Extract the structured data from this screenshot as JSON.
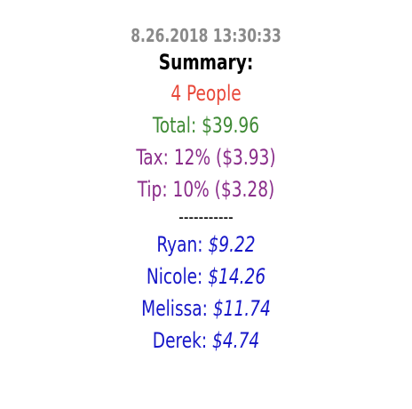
{
  "timestamp": "8.26.2018 13:30:33",
  "summary_title": "Summary:",
  "people_count": "4 People",
  "total": "Total: $39.96",
  "tax": "Tax: 12% ($3.93)",
  "tip": "Tip: 10% ($3.28)",
  "divider": "-----------",
  "people": [
    {
      "label": "Ryan:",
      "amount": "$9.22"
    },
    {
      "label": "Nicole:",
      "amount": "$14.26"
    },
    {
      "label": "Melissa:",
      "amount": "$11.74"
    },
    {
      "label": "Derek:",
      "amount": "$4.74"
    }
  ],
  "colors": {
    "timestamp": "#8a8a8a",
    "title": "#000000",
    "people_count": "#e8483a",
    "total": "#3f8a35",
    "tax_tip": "#8a2d8a",
    "person": "#1616c8"
  }
}
